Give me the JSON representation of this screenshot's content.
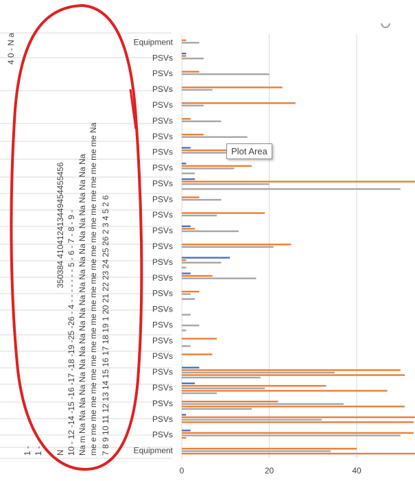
{
  "tooltip": {
    "text": "Plot Area"
  },
  "left_labels": {
    "col1": "1  -",
    "col2": "1  -",
    "col3": "N",
    "col4": "10 - 12 -14 -15 -16 -17 -18 -19 -25 -26 -   4 -   -   -   -   -   -   -   5 -  6 -  7 -  8 -  9 -",
    "col5": "Na m Na Na Na Na Na Na Na Na Na Na Na Na Na Na Na Na Na Na Na Na Na Na",
    "col6": "me e me me me me me me me me me me me me me me me me me me me me me me Na",
    "col7": "7  8  9  10  11  12  13  14  15  16  17  18  19  1  20  21  22  23  24  25  26  2  3  4  5  2  6",
    "col_num": "350384       410412413449454455456",
    "top_fragments": "4  0  -  N  a"
  },
  "chart_data": {
    "type": "bar",
    "orientation": "horizontal",
    "categories": [
      "Equipment",
      "PSVs",
      "PSVs",
      "PSVs",
      "PSVs",
      "PSVs",
      "PSVs",
      "PSVs",
      "PSVs",
      "PSVs",
      "PSVs",
      "PSVs",
      "PSVs",
      "PSVs",
      "PSVs",
      "PSVs",
      "PSVs",
      "PSVs",
      "PSVs",
      "PSVs",
      "PSVs",
      "PSVs",
      "PSVs",
      "PSVs",
      "PSVs",
      "PSVs",
      "Equipment"
    ],
    "series": [
      {
        "color": "#4472c4",
        "values": [
          0,
          2,
          1,
          0,
          3,
          4,
          0,
          0,
          0,
          0,
          0,
          2,
          11,
          0,
          2,
          0,
          0,
          3,
          1,
          2,
          0,
          0,
          0,
          0,
          0,
          1,
          0
        ]
      },
      {
        "color": "#ed7d31",
        "values": [
          40,
          53,
          57,
          22,
          33,
          50,
          7,
          8,
          0,
          0,
          4,
          7,
          1,
          25,
          3,
          19,
          4,
          54,
          16,
          17,
          5,
          2,
          26,
          23,
          4,
          1,
          1
        ]
      },
      {
        "color": "#a5a5a5",
        "values": [
          34,
          50,
          32,
          37,
          19,
          35,
          0,
          0,
          4,
          0,
          2,
          17,
          9,
          21,
          13,
          8,
          9,
          20,
          12,
          19,
          15,
          9,
          5,
          7,
          20,
          5,
          4
        ]
      },
      {
        "color": "#ed7d31",
        "values": [
          57,
          1,
          53,
          51,
          47,
          51,
          0,
          0,
          0,
          0,
          0,
          0,
          0,
          0,
          0,
          0,
          0,
          0,
          0,
          0,
          0,
          0,
          0,
          0,
          0,
          0,
          0
        ]
      },
      {
        "color": "#a5a5a5",
        "values": [
          0,
          0,
          0,
          16,
          8,
          18,
          0,
          2,
          1,
          2,
          3,
          0,
          1,
          0,
          0,
          0,
          0,
          50,
          3,
          0,
          0,
          0,
          0,
          0,
          0,
          0,
          0
        ]
      }
    ],
    "xticks": [
      0,
      20,
      40
    ],
    "xlim": [
      0,
      53
    ],
    "grid": true,
    "legend": "none"
  }
}
